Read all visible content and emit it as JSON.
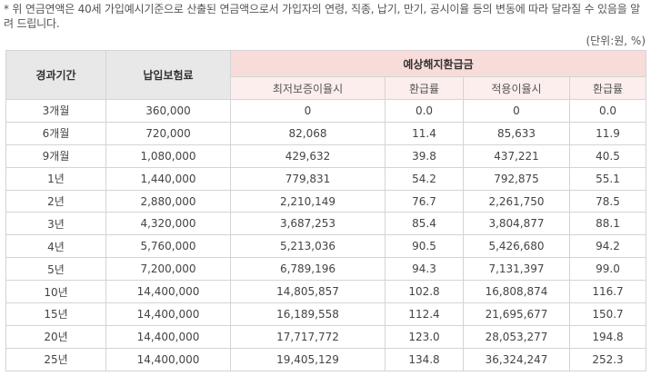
{
  "note": "* 위 연금연액은 40세 가입예시기준으로 산출된 연금액으로서 가입자의 연령, 직종, 납기, 만기, 공시이율 등의 변동에 따라 달라질 수 있음을 알려 드립니다.",
  "unit": "(단위:원, %)",
  "headers": {
    "period": "경과기간",
    "premium": "납입보험료",
    "refund_group": "예상해지환급금",
    "min_rate": "최저보증이율시",
    "min_ratio": "환급률",
    "applied_rate": "적용이율시",
    "applied_ratio": "환급률"
  },
  "rows": [
    [
      "3개월",
      "360,000",
      "0",
      "0.0",
      "0",
      "0.0"
    ],
    [
      "6개월",
      "720,000",
      "82,068",
      "11.4",
      "85,633",
      "11.9"
    ],
    [
      "9개월",
      "1,080,000",
      "429,632",
      "39.8",
      "437,221",
      "40.5"
    ],
    [
      "1년",
      "1,440,000",
      "779,831",
      "54.2",
      "792,875",
      "55.1"
    ],
    [
      "2년",
      "2,880,000",
      "2,210,149",
      "76.7",
      "2,261,750",
      "78.5"
    ],
    [
      "3년",
      "4,320,000",
      "3,687,253",
      "85.4",
      "3,804,877",
      "88.1"
    ],
    [
      "4년",
      "5,760,000",
      "5,213,036",
      "90.5",
      "5,426,680",
      "94.2"
    ],
    [
      "5년",
      "7,200,000",
      "6,789,196",
      "94.3",
      "7,131,397",
      "99.0"
    ],
    [
      "10년",
      "14,400,000",
      "14,805,857",
      "102.8",
      "16,808,874",
      "116.7"
    ],
    [
      "15년",
      "14,400,000",
      "16,189,558",
      "112.4",
      "21,695,677",
      "150.7"
    ],
    [
      "20년",
      "14,400,000",
      "17,717,772",
      "123.0",
      "28,053,277",
      "194.8"
    ],
    [
      "25년",
      "14,400,000",
      "19,405,129",
      "134.8",
      "36,324,247",
      "252.3"
    ]
  ]
}
